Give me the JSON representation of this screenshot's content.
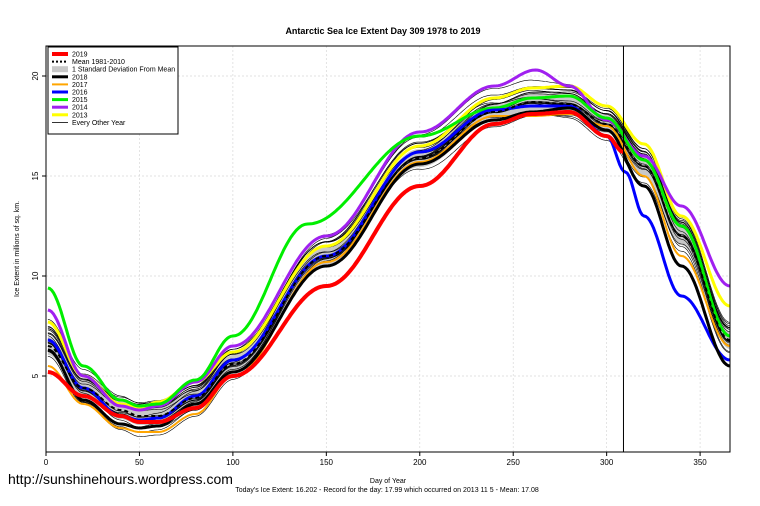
{
  "chart_data": {
    "type": "line",
    "title": "Antarctic Sea Ice Extent Day 309 1978 to 2019",
    "xlabel": "Day of Year",
    "ylabel": "Ice Extent in millions of sq. km.",
    "xlim": [
      0,
      366
    ],
    "ylim": [
      1.2,
      21.5
    ],
    "xticks": [
      0,
      50,
      100,
      150,
      200,
      250,
      300,
      350
    ],
    "yticks": [
      5,
      10,
      15,
      20
    ],
    "grid": true,
    "legend_position": "top-left",
    "marker_day": 309,
    "series": [
      {
        "name": "2019",
        "color": "#ff0000",
        "width": 4,
        "dash": "",
        "x": [
          1,
          20,
          40,
          50,
          60,
          80,
          100,
          150,
          200,
          240,
          260,
          280,
          300,
          309
        ],
        "y": [
          5.2,
          4.0,
          3.0,
          2.7,
          2.7,
          3.4,
          5.0,
          9.5,
          14.5,
          17.6,
          18.1,
          18.2,
          17.0,
          16.2
        ]
      },
      {
        "name": "Mean 1981-2010",
        "color": "#000000",
        "width": 2,
        "dash": "4,3",
        "x": [
          1,
          20,
          40,
          50,
          60,
          80,
          100,
          150,
          200,
          240,
          260,
          280,
          300,
          320,
          340,
          366
        ],
        "y": [
          6.5,
          4.4,
          3.3,
          3.0,
          3.0,
          3.9,
          5.6,
          11.0,
          15.9,
          18.2,
          18.7,
          18.6,
          17.6,
          15.5,
          12.0,
          6.8
        ]
      },
      {
        "name": "1 Standard Deviation From Mean",
        "color": "#c8c8c8",
        "width": 0,
        "dash": "",
        "band": true,
        "spread": 0.45,
        "x": [
          1,
          20,
          40,
          50,
          60,
          80,
          100,
          150,
          200,
          240,
          260,
          280,
          300,
          320,
          340,
          366
        ],
        "y": [
          6.5,
          4.4,
          3.3,
          3.0,
          3.0,
          3.9,
          5.6,
          11.0,
          15.9,
          18.2,
          18.7,
          18.6,
          17.6,
          15.5,
          12.0,
          6.8
        ]
      },
      {
        "name": "2018",
        "color": "#000000",
        "width": 3,
        "dash": "",
        "x": [
          1,
          20,
          40,
          50,
          60,
          80,
          100,
          150,
          200,
          240,
          260,
          280,
          300,
          320,
          340,
          366
        ],
        "y": [
          6.3,
          3.8,
          2.6,
          2.4,
          2.5,
          3.6,
          5.2,
          10.5,
          15.6,
          17.8,
          18.2,
          18.4,
          17.3,
          14.5,
          10.5,
          5.5
        ]
      },
      {
        "name": "2017",
        "color": "#ffa500",
        "width": 2,
        "dash": "",
        "x": [
          1,
          20,
          40,
          50,
          60,
          80,
          100,
          150,
          200,
          240,
          260,
          280,
          300,
          320,
          340,
          366
        ],
        "y": [
          5.5,
          3.6,
          2.4,
          2.2,
          2.2,
          3.1,
          5.0,
          10.7,
          15.7,
          18.0,
          18.0,
          18.1,
          17.5,
          15.0,
          11.0,
          6.5
        ]
      },
      {
        "name": "2016",
        "color": "#0000ff",
        "width": 3,
        "dash": "",
        "x": [
          1,
          20,
          40,
          50,
          60,
          80,
          100,
          150,
          200,
          240,
          260,
          280,
          300,
          310,
          320,
          340,
          366
        ],
        "y": [
          6.8,
          4.4,
          3.0,
          2.8,
          2.9,
          4.0,
          5.8,
          11.0,
          16.2,
          18.3,
          18.5,
          18.5,
          17.0,
          15.2,
          13.0,
          9.0,
          5.8
        ]
      },
      {
        "name": "2015",
        "color": "#00ee00",
        "width": 3,
        "dash": "",
        "x": [
          1,
          20,
          40,
          50,
          60,
          80,
          100,
          140,
          200,
          240,
          260,
          280,
          300,
          320,
          340,
          366
        ],
        "y": [
          9.4,
          5.5,
          3.8,
          3.5,
          3.6,
          4.8,
          7.0,
          12.6,
          17.0,
          18.4,
          18.9,
          19.0,
          17.9,
          15.8,
          12.5,
          7.0
        ]
      },
      {
        "name": "2014",
        "color": "#a020f0",
        "width": 3,
        "dash": "",
        "x": [
          1,
          20,
          40,
          50,
          60,
          80,
          100,
          150,
          200,
          240,
          262,
          280,
          300,
          320,
          340,
          366
        ],
        "y": [
          8.3,
          5.0,
          3.5,
          3.3,
          3.5,
          4.7,
          6.5,
          12.0,
          17.2,
          19.5,
          20.3,
          19.5,
          17.8,
          16.0,
          13.5,
          9.5
        ]
      },
      {
        "name": "2013",
        "color": "#ffff00",
        "width": 3,
        "dash": "",
        "x": [
          1,
          20,
          40,
          50,
          60,
          80,
          100,
          150,
          200,
          240,
          260,
          280,
          300,
          320,
          340,
          366
        ],
        "y": [
          7.7,
          5.0,
          3.6,
          3.4,
          3.7,
          4.7,
          6.2,
          11.5,
          16.5,
          18.9,
          19.4,
          19.5,
          18.5,
          16.6,
          13.0,
          8.5
        ]
      },
      {
        "name": "Every Other Year",
        "color": "#000000",
        "width": 0.6,
        "dash": "",
        "x": [
          1,
          20,
          40,
          50,
          60,
          80,
          100,
          150,
          200,
          240,
          260,
          280,
          300,
          320,
          340,
          366
        ],
        "y": [
          7.0,
          4.6,
          3.4,
          3.1,
          3.2,
          4.1,
          5.8,
          11.3,
          16.2,
          18.5,
          19.0,
          18.9,
          17.9,
          15.8,
          12.3,
          7.0
        ]
      }
    ]
  },
  "footer": {
    "watermark": "http://sunshinehours.wordpress.com",
    "summary": "Today's Ice Extent: 16.202  - Record for the day: 17.99 which occurred on 2013 11 5  - Mean: 17.08"
  }
}
